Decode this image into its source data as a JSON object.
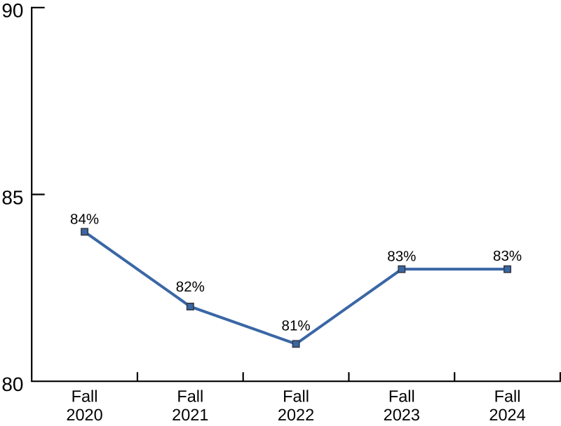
{
  "chart_data": {
    "type": "line",
    "title": "",
    "categories": [
      "Fall 2020",
      "Fall 2021",
      "Fall 2022",
      "Fall 2023",
      "Fall 2024"
    ],
    "values": [
      84,
      82,
      81,
      83,
      83
    ],
    "point_labels": [
      "84%",
      "82%",
      "81%",
      "83%",
      "83%"
    ],
    "ylim": [
      80,
      90
    ],
    "yticks": [
      90,
      85,
      80
    ],
    "grid": "off",
    "legend": "none",
    "marker": "square",
    "colors": {
      "line": "#3A67A5",
      "marker_fill": "#3A67A5",
      "marker_border": "#333B44",
      "axis": "#000000",
      "text": "#000000",
      "background": "#FFFFFF"
    },
    "label_dy": [
      11.2,
      21.7,
      19.5,
      11.9,
      12.0
    ]
  }
}
